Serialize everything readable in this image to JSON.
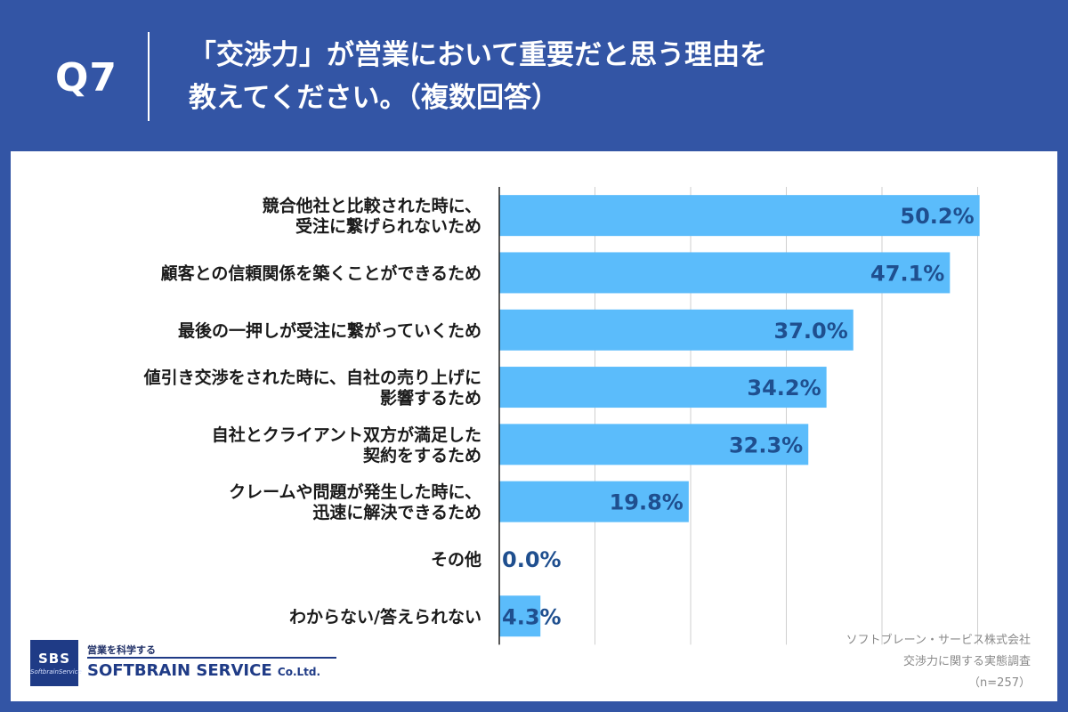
{
  "header": {
    "question": "Q7",
    "title_line1": "「交渉力」が営業において重要だと思う理由を",
    "title_line2": "教えてください。（複数回答）"
  },
  "chart_data": {
    "type": "bar",
    "orientation": "horizontal",
    "categories": [
      [
        "競合他社と比較された時に、",
        "受注に繋げられないため"
      ],
      [
        "顧客との信頼関係を築くことができるため"
      ],
      [
        "最後の一押しが受注に繋がっていくため"
      ],
      [
        "値引き交渉をされた時に、自社の売り上げに",
        "影響するため"
      ],
      [
        "自社とクライアント双方が満足した",
        "契約をするため"
      ],
      [
        "クレームや問題が発生した時に、",
        "迅速に解決できるため"
      ],
      [
        "その他"
      ],
      [
        "わからない/答えられない"
      ]
    ],
    "values": [
      50.2,
      47.1,
      37.0,
      34.2,
      32.3,
      19.8,
      0.0,
      4.3
    ],
    "value_labels": [
      "50.2%",
      "47.1%",
      "37.0%",
      "34.2%",
      "32.3%",
      "19.8%",
      "0.0%",
      "4.3%"
    ],
    "xlim": [
      0,
      60
    ],
    "grid": true,
    "bar_color": "#5bbcfb",
    "label_color": "#1f4f8f",
    "gridline_color": "#cfcfcf"
  },
  "brand": {
    "box_main": "SBS",
    "box_sub": "SoftbrainService",
    "tagline": "営業を科学する",
    "name": "SOFTBRAIN SERVICE",
    "name_suffix": "Co.Ltd."
  },
  "source": {
    "company": "ソフトブレーン・サービス株式会社",
    "survey": "交渉力に関する実態調査",
    "sample": "（n=257）"
  },
  "colors": {
    "header_bg": "#3355a5",
    "panel_bg": "#ffffff"
  }
}
